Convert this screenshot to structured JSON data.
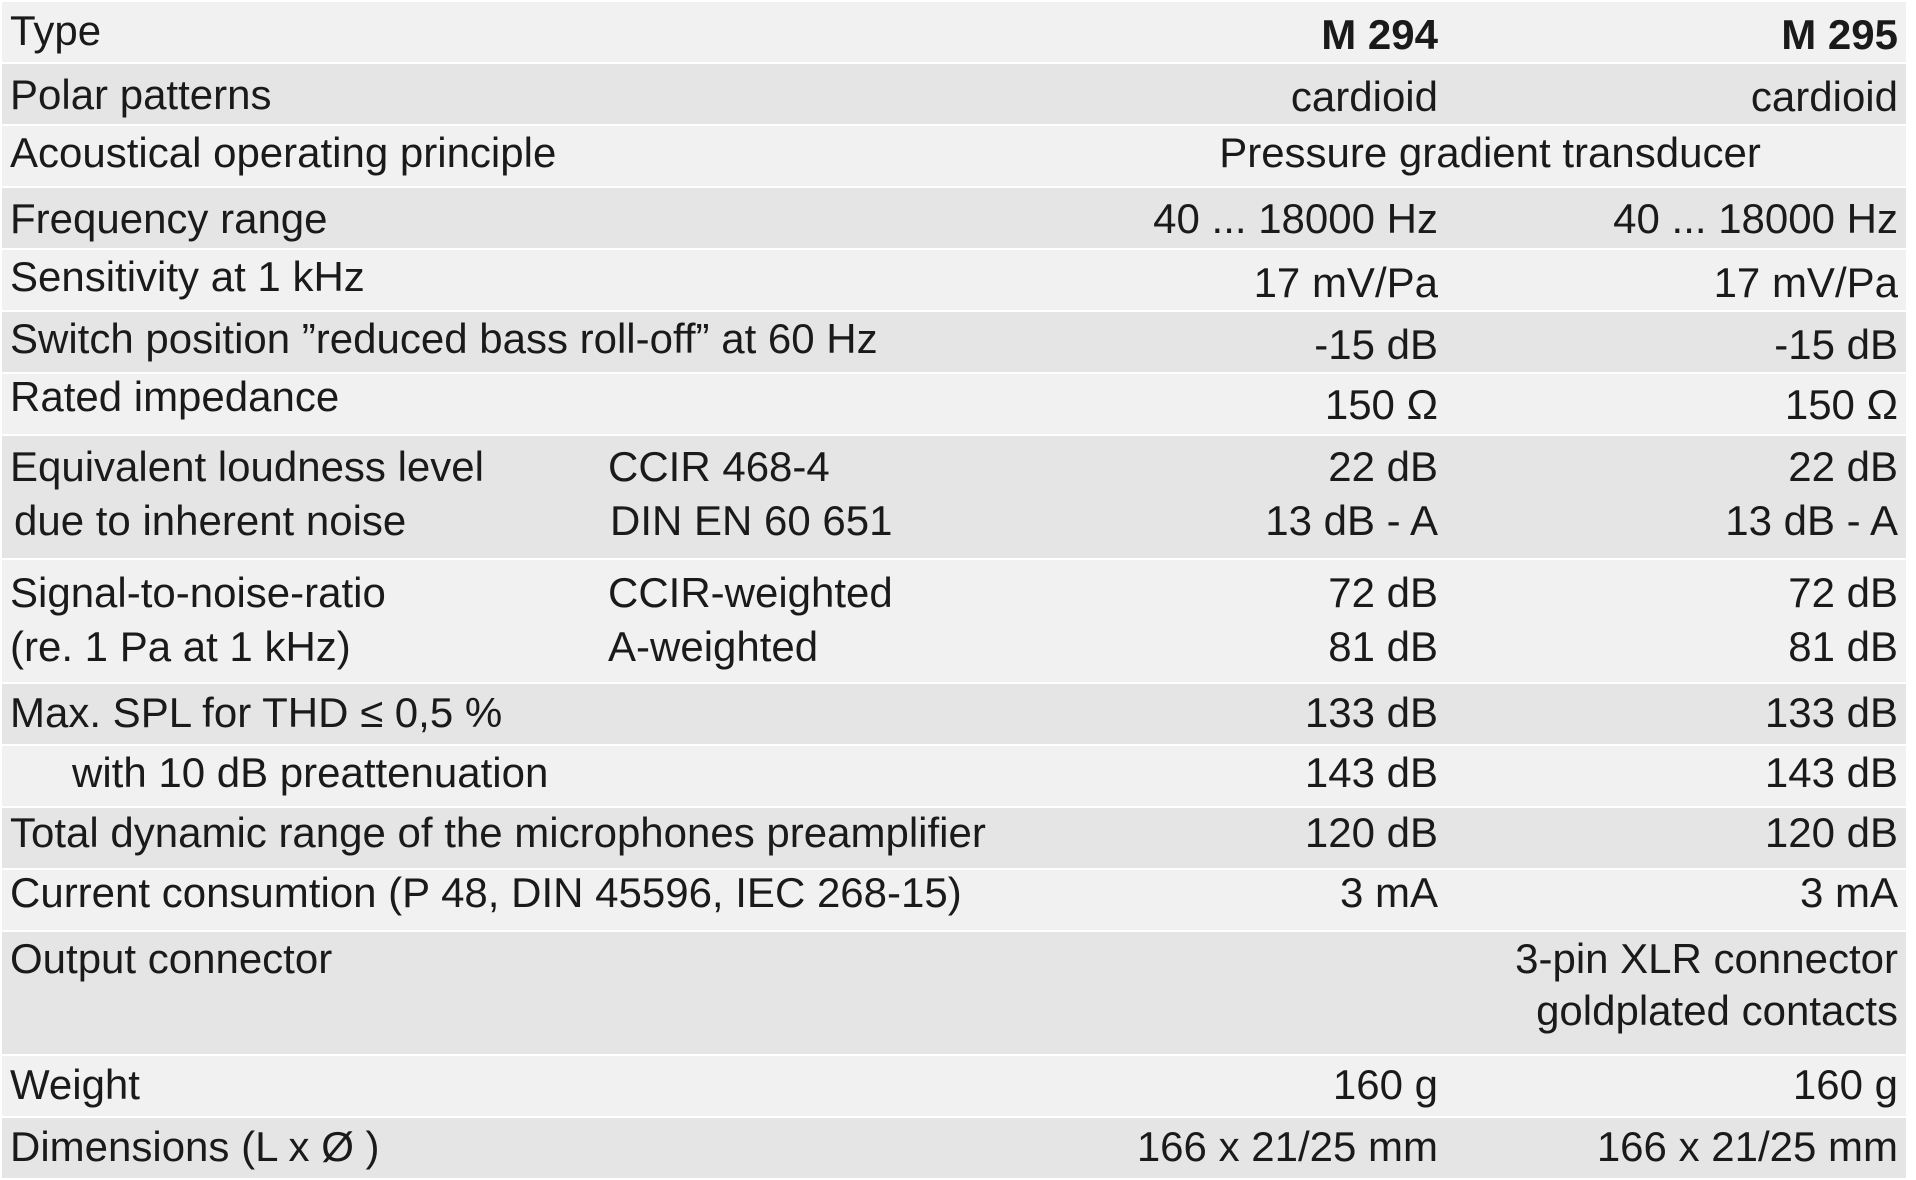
{
  "table": {
    "header": {
      "label": "Type",
      "m294": "M 294",
      "m295": "M 295"
    },
    "polar_patterns": {
      "label": "Polar patterns",
      "m294": "cardioid",
      "m295": "cardioid"
    },
    "acoustical": {
      "label": "Acoustical operating principle",
      "value": "Pressure gradient transducer"
    },
    "frequency": {
      "label": "Frequency range",
      "m294": "40 ... 18000 Hz",
      "m295": "40 ... 18000 Hz"
    },
    "sensitivity": {
      "label": "Sensitivity at 1 kHz",
      "m294": "17 mV/Pa",
      "m295": "17 mV/Pa"
    },
    "switch_position": {
      "label": "Switch position ”reduced bass roll-off” at 60 Hz",
      "m294": "-15 dB",
      "m295": "-15 dB"
    },
    "impedance": {
      "label": "Rated impedance",
      "m294": "150 Ω",
      "m295": "150 Ω"
    },
    "loudness": {
      "label_line1": "Equivalent loudness level",
      "label_line2": "due to inherent noise",
      "sub_line1": "CCIR  468-4",
      "sub_line2": "DIN EN 60 651",
      "m294_line1": "22 dB",
      "m294_line2": "13 dB - A",
      "m295_line1": "22 dB",
      "m295_line2": "13 dB - A"
    },
    "snr": {
      "label_line1": "Signal-to-noise-ratio",
      "label_line2": "(re. 1 Pa at 1 kHz)",
      "sub_line1": "CCIR-weighted",
      "sub_line2": "A-weighted",
      "m294_line1": "72 dB",
      "m294_line2": "81 dB",
      "m295_line1": "72 dB",
      "m295_line2": "81 dB"
    },
    "max_spl": {
      "label": "Max. SPL for THD ≤ 0,5 %",
      "m294": "133 dB",
      "m295": "133 dB"
    },
    "preattenuation": {
      "label": "with 10 dB preattenuation",
      "m294": "143 dB",
      "m295": "143 dB"
    },
    "dynamic_range": {
      "label": "Total dynamic range of the microphones preamplifier",
      "m294": "120 dB",
      "m295": "120 dB"
    },
    "current": {
      "label": "Current consumtion (P 48, DIN 45596, IEC 268-15)",
      "m294": "3 mA",
      "m295": "3 mA"
    },
    "output": {
      "label": "Output connector",
      "value_line1": "3-pin XLR connector",
      "value_line2": "goldplated contacts"
    },
    "weight": {
      "label": "Weight",
      "m294": "160 g",
      "m295": "160 g"
    },
    "dimensions": {
      "label": "Dimensions (L x Ø )",
      "m294": "166 x 21/25 mm",
      "m295": "166 x 21/25 mm"
    }
  }
}
